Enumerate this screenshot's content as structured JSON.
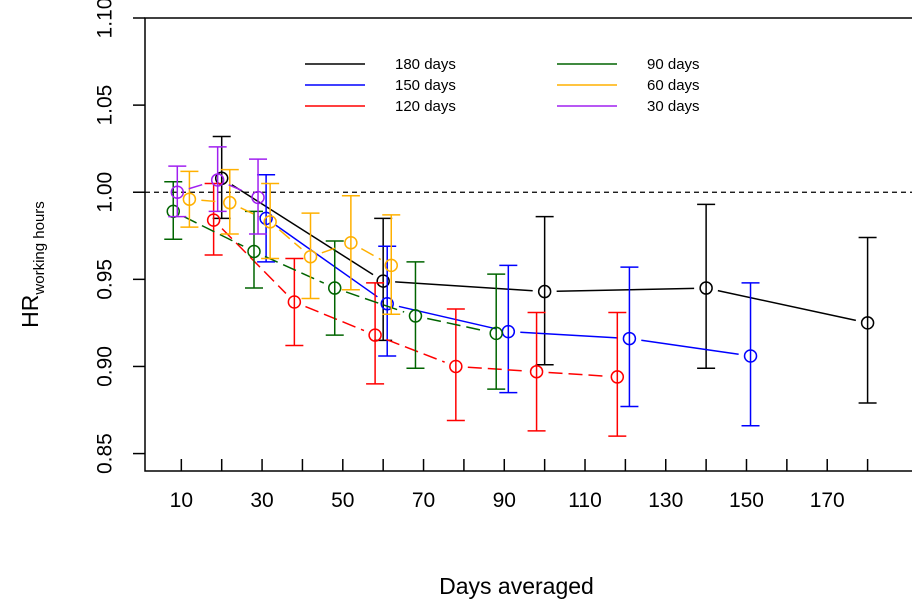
{
  "chart_data": {
    "type": "line",
    "xlabel": "Days averaged",
    "ylabel_main": "HR",
    "ylabel_sub": "working hours",
    "xlim": [
      1,
      191
    ],
    "ylim": [
      0.84,
      1.1
    ],
    "x_ticks": [
      10,
      30,
      50,
      70,
      90,
      110,
      130,
      150,
      170
    ],
    "x_minor_ticks": [
      20,
      40,
      60,
      80,
      100,
      120,
      140,
      160,
      180
    ],
    "y_ticks": [
      0.85,
      0.9,
      0.95,
      1.0,
      1.05,
      1.1
    ],
    "y_tick_labels": [
      "0.85",
      "0.90",
      "0.95",
      "1.00",
      "1.05",
      "1.10"
    ],
    "reference_line": 1.0,
    "legend_position": "top",
    "series": [
      {
        "name": "180 days",
        "color": "#000000",
        "points": [
          {
            "x": 20,
            "y": 1.008,
            "lo": 0.985,
            "hi": 1.032
          },
          {
            "x": 60,
            "y": 0.949,
            "lo": 0.915,
            "hi": 0.985
          },
          {
            "x": 100,
            "y": 0.943,
            "lo": 0.901,
            "hi": 0.986
          },
          {
            "x": 140,
            "y": 0.945,
            "lo": 0.899,
            "hi": 0.993
          },
          {
            "x": 180,
            "y": 0.925,
            "lo": 0.879,
            "hi": 0.974
          }
        ]
      },
      {
        "name": "150 days",
        "color": "#0000ff",
        "points": [
          {
            "x": 31,
            "y": 0.985,
            "lo": 0.96,
            "hi": 1.01
          },
          {
            "x": 61,
            "y": 0.936,
            "lo": 0.906,
            "hi": 0.969
          },
          {
            "x": 91,
            "y": 0.92,
            "lo": 0.885,
            "hi": 0.958
          },
          {
            "x": 121,
            "y": 0.916,
            "lo": 0.877,
            "hi": 0.957
          },
          {
            "x": 151,
            "y": 0.906,
            "lo": 0.866,
            "hi": 0.948
          }
        ]
      },
      {
        "name": "120 days",
        "color": "#ff0000",
        "points": [
          {
            "x": 18,
            "y": 0.984,
            "lo": 0.964,
            "hi": 1.005
          },
          {
            "x": 38,
            "y": 0.937,
            "lo": 0.912,
            "hi": 0.962
          },
          {
            "x": 58,
            "y": 0.918,
            "lo": 0.89,
            "hi": 0.948
          },
          {
            "x": 78,
            "y": 0.9,
            "lo": 0.869,
            "hi": 0.933
          },
          {
            "x": 98,
            "y": 0.897,
            "lo": 0.863,
            "hi": 0.931
          },
          {
            "x": 118,
            "y": 0.894,
            "lo": 0.86,
            "hi": 0.931
          }
        ]
      },
      {
        "name": "90 days",
        "color": "#006400",
        "points": [
          {
            "x": 8,
            "y": 0.989,
            "lo": 0.973,
            "hi": 1.006
          },
          {
            "x": 28,
            "y": 0.966,
            "lo": 0.945,
            "hi": 0.989
          },
          {
            "x": 48,
            "y": 0.945,
            "lo": 0.918,
            "hi": 0.972
          },
          {
            "x": 68,
            "y": 0.929,
            "lo": 0.899,
            "hi": 0.96
          },
          {
            "x": 88,
            "y": 0.919,
            "lo": 0.887,
            "hi": 0.953
          }
        ]
      },
      {
        "name": "60 days",
        "color": "#ffb000",
        "points": [
          {
            "x": 12,
            "y": 0.996,
            "lo": 0.98,
            "hi": 1.012
          },
          {
            "x": 22,
            "y": 0.994,
            "lo": 0.976,
            "hi": 1.013
          },
          {
            "x": 32,
            "y": 0.983,
            "lo": 0.962,
            "hi": 1.005
          },
          {
            "x": 42,
            "y": 0.963,
            "lo": 0.939,
            "hi": 0.988
          },
          {
            "x": 52,
            "y": 0.971,
            "lo": 0.944,
            "hi": 0.998
          },
          {
            "x": 62,
            "y": 0.958,
            "lo": 0.93,
            "hi": 0.987
          }
        ]
      },
      {
        "name": "30 days",
        "color": "#a020f0",
        "points": [
          {
            "x": 9,
            "y": 1.0,
            "lo": 0.986,
            "hi": 1.015
          },
          {
            "x": 19,
            "y": 1.007,
            "lo": 0.989,
            "hi": 1.026
          },
          {
            "x": 29,
            "y": 0.997,
            "lo": 0.976,
            "hi": 1.019
          }
        ]
      }
    ],
    "legend_columns": [
      [
        "180 days",
        "150 days",
        "120 days"
      ],
      [
        "90 days",
        "60 days",
        "30 days"
      ]
    ]
  }
}
